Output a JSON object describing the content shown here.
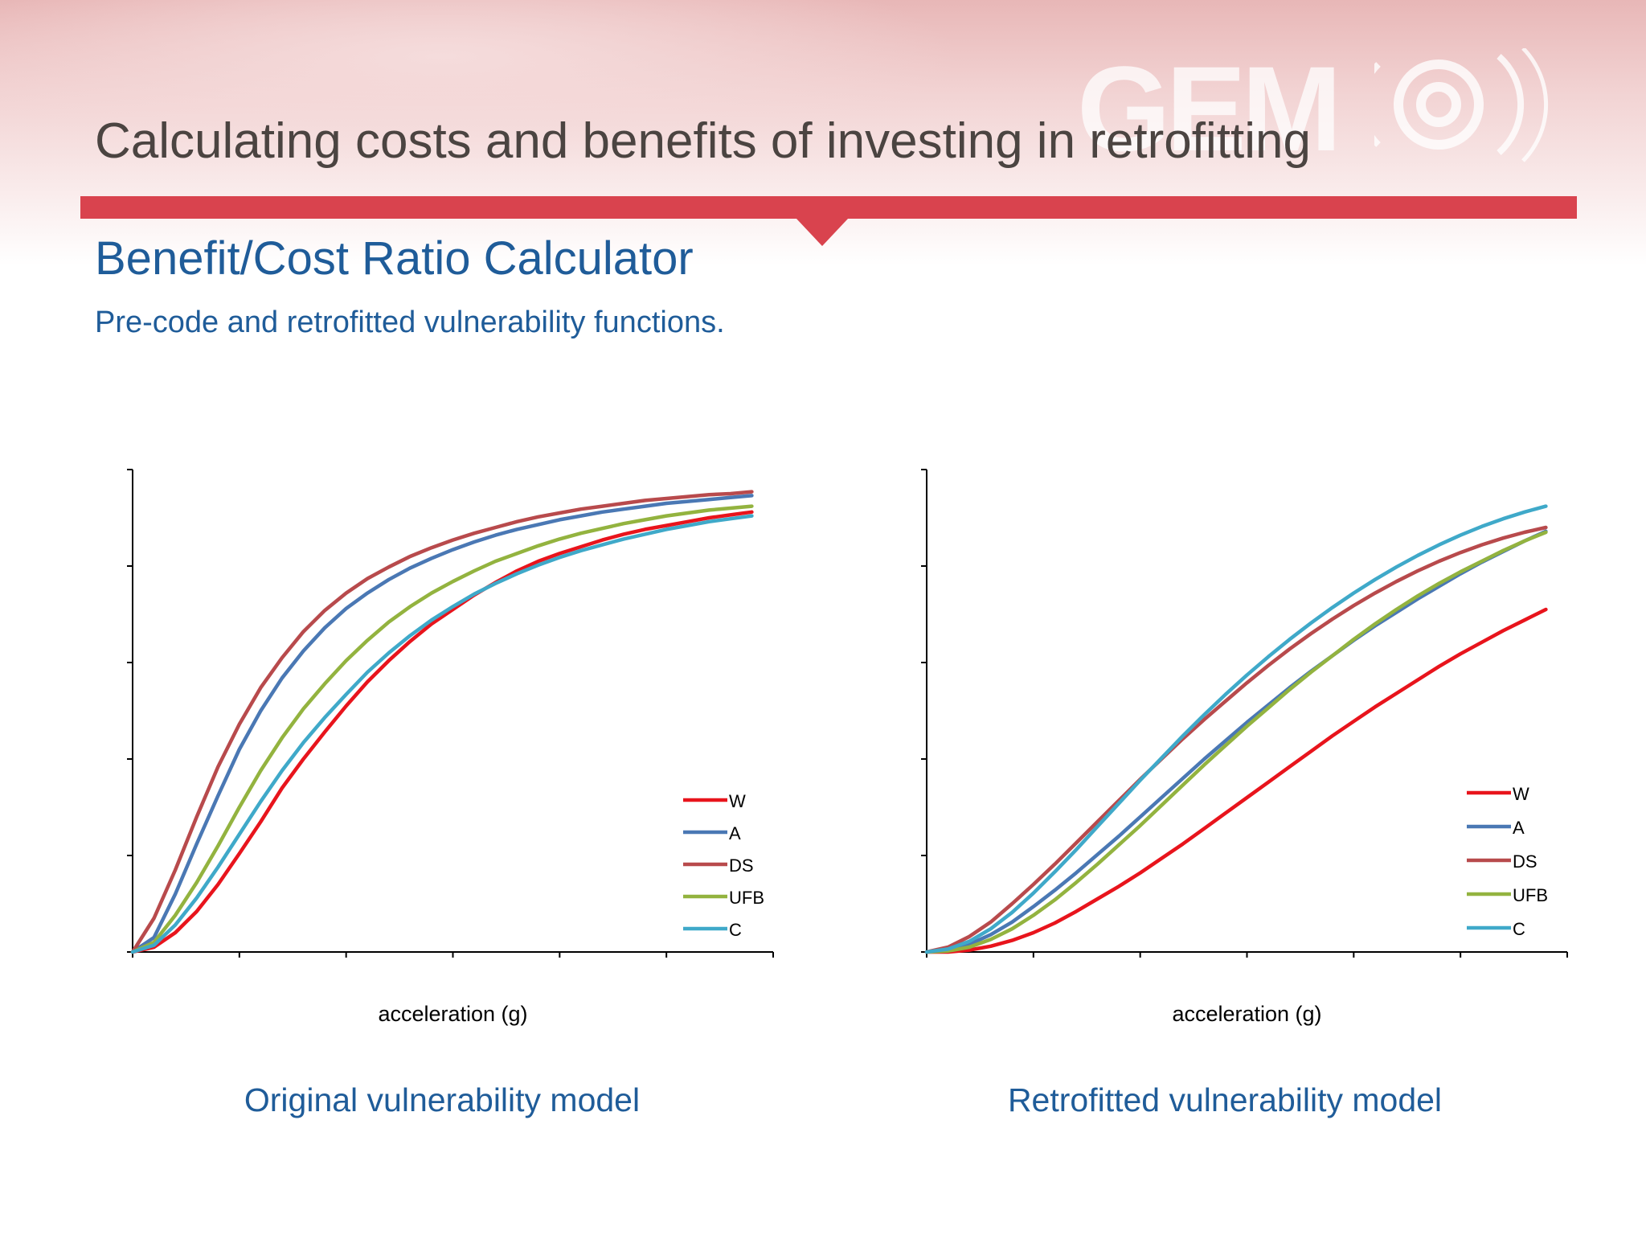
{
  "slide": {
    "title": "Calculating costs and benefits of investing in retrofitting",
    "subtitle": "Benefit/Cost Ratio Calculator",
    "description": "Pre-code and retrofitted vulnerability functions.",
    "logo_text": "GEM"
  },
  "colors": {
    "accent_red": "#d9434e",
    "heading_blue": "#1f5c99",
    "title_gray": "#4b4441"
  },
  "chart_data": [
    {
      "type": "line",
      "title": "",
      "caption": "Original vulnerability model",
      "xlabel": "acceleration (g)",
      "ylabel": "",
      "xlim": [
        0,
        6
      ],
      "ylim": [
        0,
        5
      ],
      "grid": false,
      "legend_position": "bottom-right",
      "x": [
        0,
        0.2,
        0.4,
        0.6,
        0.8,
        1.0,
        1.2,
        1.4,
        1.6,
        1.8,
        2.0,
        2.2,
        2.4,
        2.6,
        2.8,
        3.0,
        3.2,
        3.4,
        3.6,
        3.8,
        4.0,
        4.2,
        4.4,
        4.6,
        4.8,
        5.0,
        5.2,
        5.4,
        5.6,
        5.8
      ],
      "series": [
        {
          "name": "W",
          "color": "#e8141c",
          "values": [
            0,
            0.05,
            0.2,
            0.42,
            0.7,
            1.02,
            1.35,
            1.7,
            2.0,
            2.28,
            2.55,
            2.8,
            3.02,
            3.22,
            3.4,
            3.55,
            3.7,
            3.83,
            3.95,
            4.05,
            4.13,
            4.2,
            4.27,
            4.33,
            4.38,
            4.42,
            4.46,
            4.5,
            4.53,
            4.56
          ]
        },
        {
          "name": "A",
          "color": "#4a78b4",
          "values": [
            0,
            0.15,
            0.6,
            1.12,
            1.62,
            2.1,
            2.5,
            2.84,
            3.12,
            3.36,
            3.56,
            3.72,
            3.86,
            3.98,
            4.08,
            4.17,
            4.25,
            4.32,
            4.38,
            4.43,
            4.48,
            4.52,
            4.56,
            4.59,
            4.62,
            4.65,
            4.67,
            4.69,
            4.71,
            4.73
          ]
        },
        {
          "name": "DS",
          "color": "#b84a4c",
          "values": [
            0,
            0.35,
            0.85,
            1.4,
            1.92,
            2.36,
            2.74,
            3.05,
            3.32,
            3.54,
            3.72,
            3.87,
            3.99,
            4.1,
            4.19,
            4.27,
            4.34,
            4.4,
            4.46,
            4.51,
            4.55,
            4.59,
            4.62,
            4.65,
            4.68,
            4.7,
            4.72,
            4.74,
            4.75,
            4.77
          ]
        },
        {
          "name": "UFB",
          "color": "#93b33f",
          "values": [
            0,
            0.1,
            0.38,
            0.72,
            1.1,
            1.5,
            1.88,
            2.22,
            2.52,
            2.78,
            3.02,
            3.23,
            3.42,
            3.58,
            3.72,
            3.84,
            3.95,
            4.05,
            4.13,
            4.21,
            4.28,
            4.34,
            4.39,
            4.44,
            4.48,
            4.52,
            4.55,
            4.58,
            4.6,
            4.62
          ]
        },
        {
          "name": "C",
          "color": "#3fa9c9",
          "values": [
            0,
            0.07,
            0.28,
            0.56,
            0.88,
            1.22,
            1.56,
            1.88,
            2.17,
            2.43,
            2.67,
            2.9,
            3.1,
            3.28,
            3.44,
            3.58,
            3.71,
            3.82,
            3.92,
            4.01,
            4.09,
            4.16,
            4.22,
            4.28,
            4.33,
            4.38,
            4.42,
            4.46,
            4.49,
            4.52
          ]
        }
      ]
    },
    {
      "type": "line",
      "title": "",
      "caption": "Retrofitted vulnerability model",
      "xlabel": "acceleration (g)",
      "ylabel": "",
      "xlim": [
        0,
        6
      ],
      "ylim": [
        0,
        5
      ],
      "grid": false,
      "legend_position": "bottom-right",
      "x": [
        0,
        0.2,
        0.4,
        0.6,
        0.8,
        1.0,
        1.2,
        1.4,
        1.6,
        1.8,
        2.0,
        2.2,
        2.4,
        2.6,
        2.8,
        3.0,
        3.2,
        3.4,
        3.6,
        3.8,
        4.0,
        4.2,
        4.4,
        4.6,
        4.8,
        5.0,
        5.2,
        5.4,
        5.6,
        5.8
      ],
      "series": [
        {
          "name": "W",
          "color": "#e8141c",
          "values": [
            0,
            0.0,
            0.02,
            0.06,
            0.12,
            0.2,
            0.3,
            0.42,
            0.55,
            0.68,
            0.82,
            0.97,
            1.12,
            1.28,
            1.44,
            1.6,
            1.76,
            1.92,
            2.08,
            2.24,
            2.39,
            2.54,
            2.68,
            2.82,
            2.96,
            3.09,
            3.21,
            3.33,
            3.44,
            3.55
          ]
        },
        {
          "name": "A",
          "color": "#4a78b4",
          "values": [
            0,
            0.02,
            0.08,
            0.18,
            0.31,
            0.47,
            0.64,
            0.82,
            1.01,
            1.2,
            1.4,
            1.6,
            1.8,
            2.0,
            2.19,
            2.38,
            2.56,
            2.74,
            2.91,
            3.07,
            3.23,
            3.38,
            3.52,
            3.66,
            3.79,
            3.92,
            4.04,
            4.15,
            4.26,
            4.36
          ]
        },
        {
          "name": "DS",
          "color": "#b84a4c",
          "values": [
            0,
            0.05,
            0.16,
            0.31,
            0.5,
            0.7,
            0.91,
            1.13,
            1.35,
            1.57,
            1.79,
            2.0,
            2.21,
            2.41,
            2.6,
            2.79,
            2.97,
            3.14,
            3.3,
            3.45,
            3.59,
            3.72,
            3.84,
            3.95,
            4.05,
            4.14,
            4.22,
            4.29,
            4.35,
            4.4
          ]
        },
        {
          "name": "UFB",
          "color": "#93b33f",
          "values": [
            0,
            0.01,
            0.05,
            0.13,
            0.24,
            0.38,
            0.54,
            0.72,
            0.91,
            1.11,
            1.31,
            1.52,
            1.73,
            1.94,
            2.14,
            2.34,
            2.53,
            2.72,
            2.9,
            3.07,
            3.24,
            3.4,
            3.55,
            3.69,
            3.82,
            3.94,
            4.05,
            4.16,
            4.26,
            4.35
          ]
        },
        {
          "name": "C",
          "color": "#3fa9c9",
          "values": [
            0,
            0.03,
            0.11,
            0.24,
            0.41,
            0.61,
            0.83,
            1.06,
            1.3,
            1.54,
            1.78,
            2.01,
            2.24,
            2.46,
            2.67,
            2.87,
            3.06,
            3.24,
            3.41,
            3.57,
            3.72,
            3.86,
            3.99,
            4.11,
            4.22,
            4.32,
            4.41,
            4.49,
            4.56,
            4.62
          ]
        }
      ]
    }
  ]
}
